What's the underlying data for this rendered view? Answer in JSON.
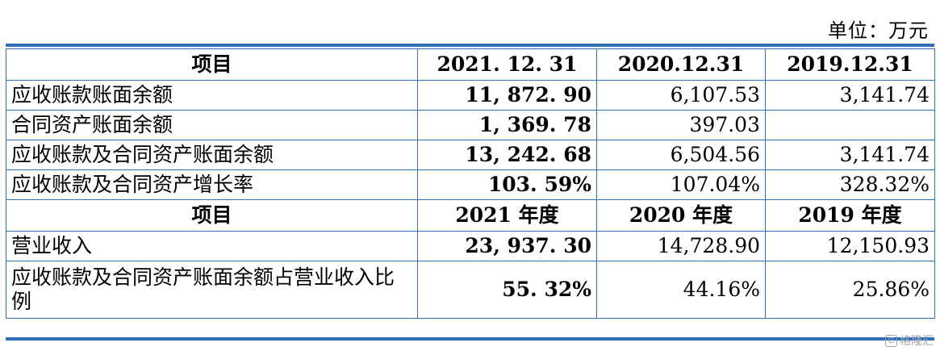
{
  "unit_label": "单位：万元",
  "header1": [
    "项目",
    "2021. 12. 31",
    "2020.12.31",
    "2019.12.31"
  ],
  "rows1": [
    {
      "label": "应收账款账面余额",
      "values": [
        "11, 872. 90",
        "6,107.53",
        "3,141.74"
      ]
    },
    {
      "label": "合同资产账面余额",
      "values": [
        "1, 369. 78",
        "397.03",
        ""
      ]
    },
    {
      "label": "应收账款及合同资产账面余额",
      "values": [
        "13, 242. 68",
        "6,504.56",
        "3,141.74"
      ]
    },
    {
      "label": "应收账款及合同资产增长率",
      "values": [
        "103. 59%",
        "107.04%",
        "328.32%"
      ]
    }
  ],
  "header2": [
    "项目",
    "2021 年度",
    "2020 年度",
    "2019 年度"
  ],
  "rows2": [
    {
      "label": "营业收入",
      "values": [
        "23, 937. 30",
        "14,728.90",
        "12,150.93"
      ]
    },
    {
      "label": "应收账款及合同资产账面余额占营业收入比例",
      "values": [
        "55. 32%",
        "44.16%",
        "25.86%"
      ]
    }
  ],
  "watermark": {
    "icon": "G",
    "text": "格隆汇"
  }
}
